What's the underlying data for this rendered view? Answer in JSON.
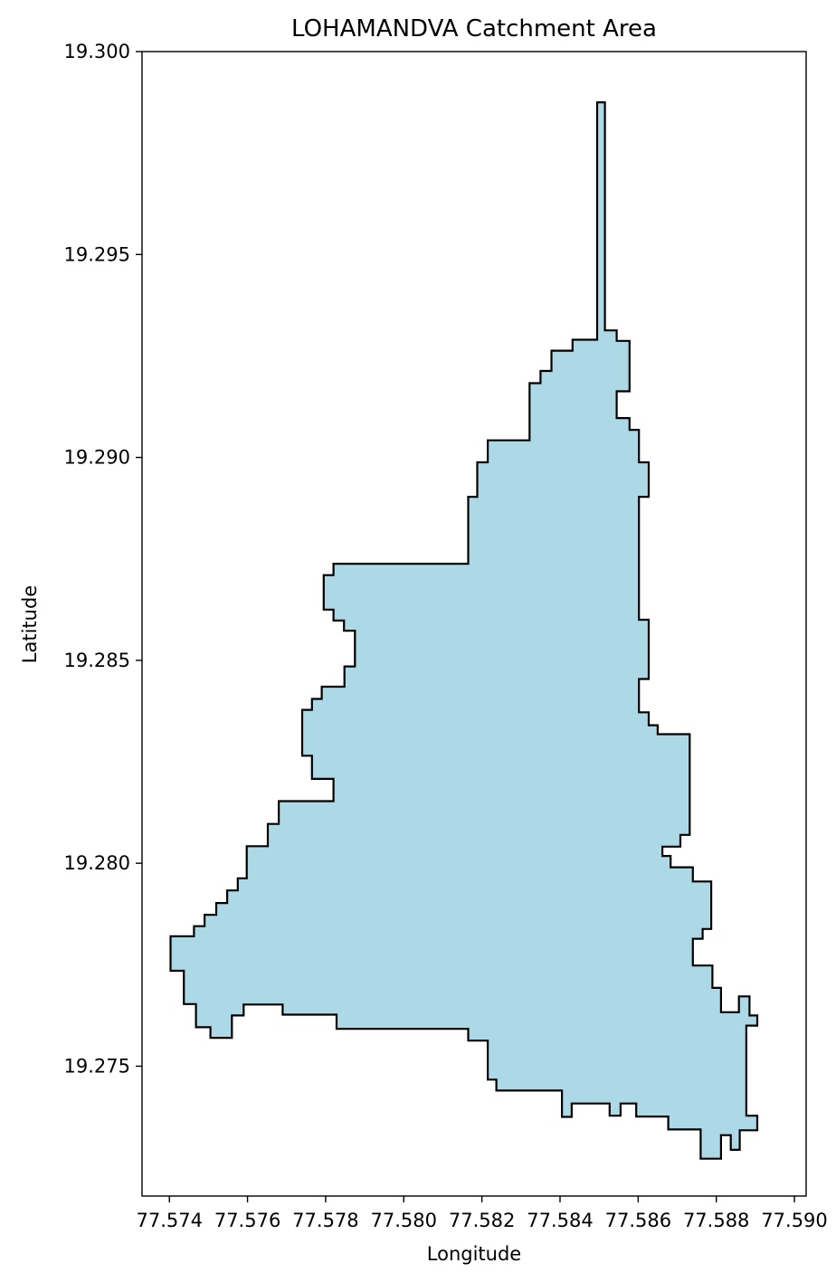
{
  "chart_data": {
    "type": "area",
    "title": "LOHAMANDVA Catchment Area",
    "xlabel": "Longitude",
    "ylabel": "Latitude",
    "xlim": [
      77.5733,
      77.5903
    ],
    "ylim": [
      19.2718,
      19.3
    ],
    "xticks": [
      "77.574",
      "77.576",
      "77.578",
      "77.580",
      "77.582",
      "77.584",
      "77.586",
      "77.588",
      "77.590"
    ],
    "yticks": [
      "19.275",
      "19.280",
      "19.285",
      "19.290",
      "19.295",
      "19.300"
    ],
    "grid": false,
    "fill_color": "#add8e6",
    "edge_color": "#000000",
    "polygon": [
      [
        77.58495,
        19.29875
      ],
      [
        77.58515,
        19.29875
      ],
      [
        77.58515,
        19.29313
      ],
      [
        77.58545,
        19.29313
      ],
      [
        77.58545,
        19.29287
      ],
      [
        77.58578,
        19.29287
      ],
      [
        77.58578,
        19.29163
      ],
      [
        77.58545,
        19.29163
      ],
      [
        77.58545,
        19.29097
      ],
      [
        77.58578,
        19.29097
      ],
      [
        77.58578,
        19.29068
      ],
      [
        77.58602,
        19.29068
      ],
      [
        77.58602,
        19.28988
      ],
      [
        77.58627,
        19.28988
      ],
      [
        77.58627,
        19.28903
      ],
      [
        77.58602,
        19.28903
      ],
      [
        77.58602,
        19.286
      ],
      [
        77.58627,
        19.286
      ],
      [
        77.58627,
        19.28454
      ],
      [
        77.58602,
        19.28454
      ],
      [
        77.58602,
        19.28372
      ],
      [
        77.58627,
        19.28372
      ],
      [
        77.58627,
        19.2834
      ],
      [
        77.5865,
        19.2834
      ],
      [
        77.5865,
        19.28318
      ],
      [
        77.58732,
        19.28318
      ],
      [
        77.58732,
        19.2807
      ],
      [
        77.58708,
        19.2807
      ],
      [
        77.58708,
        19.28041
      ],
      [
        77.58662,
        19.28041
      ],
      [
        77.58662,
        19.28018
      ],
      [
        77.58683,
        19.28018
      ],
      [
        77.58683,
        19.2799
      ],
      [
        77.5874,
        19.2799
      ],
      [
        77.5874,
        19.27955
      ],
      [
        77.58787,
        19.27955
      ],
      [
        77.58787,
        19.27838
      ],
      [
        77.58765,
        19.27838
      ],
      [
        77.58765,
        19.27814
      ],
      [
        77.5874,
        19.27814
      ],
      [
        77.5874,
        19.27748
      ],
      [
        77.5879,
        19.27748
      ],
      [
        77.5879,
        19.27693
      ],
      [
        77.58812,
        19.27693
      ],
      [
        77.58812,
        19.27633
      ],
      [
        77.58858,
        19.27633
      ],
      [
        77.58858,
        19.27672
      ],
      [
        77.58885,
        19.27672
      ],
      [
        77.58885,
        19.27625
      ],
      [
        77.58905,
        19.27625
      ],
      [
        77.58905,
        19.276
      ],
      [
        77.58877,
        19.276
      ],
      [
        77.58877,
        19.27378
      ],
      [
        77.58905,
        19.27378
      ],
      [
        77.58905,
        19.27342
      ],
      [
        77.5886,
        19.27342
      ],
      [
        77.5886,
        19.27294
      ],
      [
        77.58837,
        19.27294
      ],
      [
        77.58837,
        19.2733
      ],
      [
        77.58812,
        19.2733
      ],
      [
        77.58812,
        19.27272
      ],
      [
        77.5876,
        19.27272
      ],
      [
        77.5876,
        19.27344
      ],
      [
        77.58677,
        19.27344
      ],
      [
        77.58677,
        19.27376
      ],
      [
        77.58595,
        19.27376
      ],
      [
        77.58595,
        19.27408
      ],
      [
        77.58555,
        19.27408
      ],
      [
        77.58555,
        19.27378
      ],
      [
        77.58527,
        19.27378
      ],
      [
        77.58527,
        19.27408
      ],
      [
        77.5843,
        19.27408
      ],
      [
        77.5843,
        19.27375
      ],
      [
        77.58405,
        19.27375
      ],
      [
        77.58405,
        19.2744
      ],
      [
        77.58237,
        19.2744
      ],
      [
        77.58237,
        19.27467
      ],
      [
        77.58215,
        19.27467
      ],
      [
        77.58215,
        19.27563
      ],
      [
        77.58165,
        19.27563
      ],
      [
        77.58165,
        19.27592
      ],
      [
        77.57828,
        19.27592
      ],
      [
        77.57828,
        19.27627
      ],
      [
        77.5769,
        19.27627
      ],
      [
        77.5769,
        19.27652
      ],
      [
        77.5759,
        19.27652
      ],
      [
        77.5759,
        19.27625
      ],
      [
        77.5756,
        19.27625
      ],
      [
        77.5756,
        19.2757
      ],
      [
        77.57505,
        19.2757
      ],
      [
        77.57505,
        19.27596
      ],
      [
        77.57468,
        19.27596
      ],
      [
        77.57468,
        19.27653
      ],
      [
        77.57437,
        19.27653
      ],
      [
        77.57437,
        19.27735
      ],
      [
        77.57403,
        19.27735
      ],
      [
        77.57403,
        19.2782
      ],
      [
        77.57463,
        19.2782
      ],
      [
        77.57463,
        19.27845
      ],
      [
        77.5749,
        19.27845
      ],
      [
        77.5749,
        19.27873
      ],
      [
        77.5752,
        19.27873
      ],
      [
        77.5752,
        19.27902
      ],
      [
        77.57548,
        19.27902
      ],
      [
        77.57548,
        19.27933
      ],
      [
        77.57575,
        19.27933
      ],
      [
        77.57575,
        19.27963
      ],
      [
        77.57598,
        19.27963
      ],
      [
        77.57598,
        19.28042
      ],
      [
        77.57652,
        19.28042
      ],
      [
        77.57652,
        19.28097
      ],
      [
        77.5768,
        19.28097
      ],
      [
        77.5768,
        19.28153
      ],
      [
        77.5782,
        19.28153
      ],
      [
        77.5782,
        19.28208
      ],
      [
        77.57765,
        19.28208
      ],
      [
        77.57765,
        19.28265
      ],
      [
        77.5774,
        19.28265
      ],
      [
        77.5774,
        19.28378
      ],
      [
        77.57765,
        19.28378
      ],
      [
        77.57765,
        19.28405
      ],
      [
        77.5779,
        19.28405
      ],
      [
        77.5779,
        19.28435
      ],
      [
        77.57848,
        19.28435
      ],
      [
        77.57848,
        19.28485
      ],
      [
        77.57875,
        19.28485
      ],
      [
        77.57875,
        19.28573
      ],
      [
        77.57847,
        19.28573
      ],
      [
        77.57847,
        19.28598
      ],
      [
        77.5782,
        19.28598
      ],
      [
        77.5782,
        19.28625
      ],
      [
        77.57795,
        19.28625
      ],
      [
        77.57795,
        19.2871
      ],
      [
        77.5782,
        19.2871
      ],
      [
        77.5782,
        19.28738
      ],
      [
        77.58165,
        19.28738
      ],
      [
        77.58165,
        19.28903
      ],
      [
        77.58188,
        19.28903
      ],
      [
        77.58188,
        19.28988
      ],
      [
        77.58215,
        19.28988
      ],
      [
        77.58215,
        19.29042
      ],
      [
        77.58322,
        19.29042
      ],
      [
        77.58322,
        19.29183
      ],
      [
        77.5835,
        19.29183
      ],
      [
        77.5835,
        19.29213
      ],
      [
        77.58378,
        19.29213
      ],
      [
        77.58378,
        19.29263
      ],
      [
        77.58432,
        19.29263
      ],
      [
        77.58432,
        19.2929
      ],
      [
        77.58495,
        19.2929
      ],
      [
        77.58495,
        19.29875
      ]
    ]
  }
}
